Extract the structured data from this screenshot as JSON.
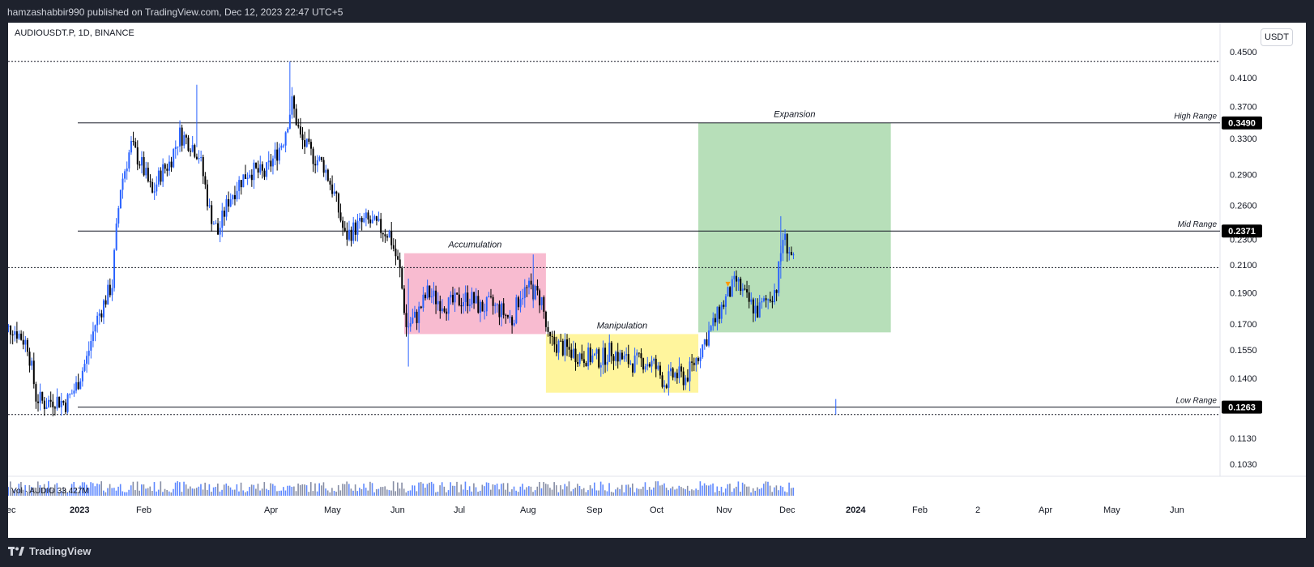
{
  "header": {
    "publish_line": "hamzashabbir990 published on TradingView.com, Dec 12, 2023 22:47 UTC+5"
  },
  "footer": {
    "brand": "TradingView"
  },
  "colors": {
    "up_candle": "#2962ff",
    "down_candle": "#000000",
    "accumulation_zone": "#f8bbd0",
    "manipulation_zone": "#fff59d",
    "expansion_zone": "#b7dfb9",
    "price_label_bg": "#000000"
  },
  "chart_data": {
    "type": "candlestick",
    "symbol_line": "AUDIOUSDT.P, 1D, BINANCE",
    "unit_button": "USDT",
    "volume_label": "Vol · AUDIO  33.427M",
    "y_axis": {
      "ylim": [
        0.0985,
        0.46
      ],
      "ticks": [
        "0.4500",
        "0.4100",
        "0.3700",
        "0.3300",
        "0.2900",
        "0.2600",
        "0.2300",
        "0.2100",
        "0.1900",
        "0.1700",
        "0.1550",
        "0.1400",
        "0.1130",
        "0.1030"
      ]
    },
    "x_axis": {
      "ticks": [
        "Dec",
        "2023",
        "Feb",
        "Apr",
        "May",
        "Jun",
        "Jul",
        "Aug",
        "Sep",
        "Oct",
        "Nov",
        "Dec",
        "2024",
        "Feb",
        "2",
        "Apr",
        "May",
        "Jun"
      ],
      "bold_ticks": [
        "2023",
        "2024"
      ]
    },
    "levels": [
      {
        "label": "High Range",
        "value": "0.3490",
        "price": 0.349
      },
      {
        "label": "Mid Range",
        "value": "0.2371",
        "price": 0.2371
      },
      {
        "label": "Low Range",
        "value": "0.1263",
        "price": 0.1263
      }
    ],
    "dotted_levels": [
      0.435,
      0.208,
      0.123
    ],
    "zones": [
      {
        "label": "Accumulation",
        "color": "#f8bbd0",
        "from": "2023-06-10",
        "to": "2023-08-16",
        "high": 0.219,
        "low": 0.164
      },
      {
        "label": "Manipulation",
        "color": "#fff59d",
        "from": "2023-08-16",
        "to": "2023-10-27",
        "high": 0.164,
        "low": 0.133
      },
      {
        "label": "Expansion",
        "color": "#b7dfb9",
        "from": "2023-10-27",
        "to": "2024-01-26",
        "high": 0.349,
        "low": 0.165
      }
    ],
    "price_path": [
      [
        "2022-12-01",
        0.165
      ],
      [
        "2022-12-07",
        0.168
      ],
      [
        "2022-12-14",
        0.158
      ],
      [
        "2022-12-18",
        0.131
      ],
      [
        "2022-12-22",
        0.128
      ],
      [
        "2022-12-27",
        0.13
      ],
      [
        "2023-01-01",
        0.128
      ],
      [
        "2023-01-06",
        0.136
      ],
      [
        "2023-01-11",
        0.15
      ],
      [
        "2023-01-15",
        0.17
      ],
      [
        "2023-01-19",
        0.183
      ],
      [
        "2023-01-23",
        0.196
      ],
      [
        "2023-01-27",
        0.278
      ],
      [
        "2023-02-01",
        0.322
      ],
      [
        "2023-02-06",
        0.3
      ],
      [
        "2023-02-11",
        0.27
      ],
      [
        "2023-02-15",
        0.292
      ],
      [
        "2023-02-19",
        0.302
      ],
      [
        "2023-02-24",
        0.335
      ],
      [
        "2023-03-01",
        0.325
      ],
      [
        "2023-03-05",
        0.312
      ],
      [
        "2023-03-10",
        0.255
      ],
      [
        "2023-03-14",
        0.235
      ],
      [
        "2023-03-19",
        0.265
      ],
      [
        "2023-03-24",
        0.282
      ],
      [
        "2023-03-29",
        0.295
      ],
      [
        "2023-04-05",
        0.29
      ],
      [
        "2023-04-10",
        0.31
      ],
      [
        "2023-04-14",
        0.33
      ],
      [
        "2023-04-18",
        0.375
      ],
      [
        "2023-04-22",
        0.33
      ],
      [
        "2023-04-27",
        0.312
      ],
      [
        "2023-05-03",
        0.3
      ],
      [
        "2023-05-08",
        0.27
      ],
      [
        "2023-05-13",
        0.232
      ],
      [
        "2023-05-18",
        0.24
      ],
      [
        "2023-05-23",
        0.246
      ],
      [
        "2023-05-29",
        0.24
      ],
      [
        "2023-06-03",
        0.235
      ],
      [
        "2023-06-08",
        0.205
      ],
      [
        "2023-06-11",
        0.168
      ],
      [
        "2023-06-16",
        0.175
      ],
      [
        "2023-06-21",
        0.19
      ],
      [
        "2023-06-26",
        0.185
      ],
      [
        "2023-07-01",
        0.182
      ],
      [
        "2023-07-06",
        0.185
      ],
      [
        "2023-07-11",
        0.187
      ],
      [
        "2023-07-16",
        0.18
      ],
      [
        "2023-07-21",
        0.182
      ],
      [
        "2023-07-26",
        0.178
      ],
      [
        "2023-07-31",
        0.172
      ],
      [
        "2023-08-04",
        0.19
      ],
      [
        "2023-08-09",
        0.193
      ],
      [
        "2023-08-14",
        0.185
      ],
      [
        "2023-08-17",
        0.16
      ],
      [
        "2023-08-21",
        0.158
      ],
      [
        "2023-08-26",
        0.155
      ],
      [
        "2023-09-01",
        0.152
      ],
      [
        "2023-09-06",
        0.151
      ],
      [
        "2023-09-11",
        0.15
      ],
      [
        "2023-09-16",
        0.155
      ],
      [
        "2023-09-21",
        0.15
      ],
      [
        "2023-09-26",
        0.148
      ],
      [
        "2023-10-01",
        0.149
      ],
      [
        "2023-10-06",
        0.147
      ],
      [
        "2023-10-11",
        0.138
      ],
      [
        "2023-10-16",
        0.142
      ],
      [
        "2023-10-21",
        0.14
      ],
      [
        "2023-10-26",
        0.15
      ],
      [
        "2023-10-30",
        0.16
      ],
      [
        "2023-11-04",
        0.172
      ],
      [
        "2023-11-09",
        0.186
      ],
      [
        "2023-11-14",
        0.198
      ],
      [
        "2023-11-19",
        0.185
      ],
      [
        "2023-11-24",
        0.178
      ],
      [
        "2023-11-29",
        0.186
      ],
      [
        "2023-12-03",
        0.194
      ],
      [
        "2023-12-06",
        0.232
      ],
      [
        "2023-12-09",
        0.222
      ],
      [
        "2023-12-12",
        0.205
      ]
    ],
    "wicks": [
      {
        "date": "2023-04-17",
        "high": 0.435,
        "low": 0.365
      },
      {
        "date": "2023-03-04",
        "high": 0.4,
        "low": 0.32
      },
      {
        "date": "2023-06-12",
        "high": 0.2,
        "low": 0.146
      },
      {
        "date": "2023-08-10",
        "high": 0.218,
        "low": 0.18
      },
      {
        "date": "2023-12-05",
        "high": 0.25,
        "low": 0.2
      },
      {
        "date": "2023-12-31",
        "high": 0.13,
        "low": 0.123
      }
    ]
  }
}
